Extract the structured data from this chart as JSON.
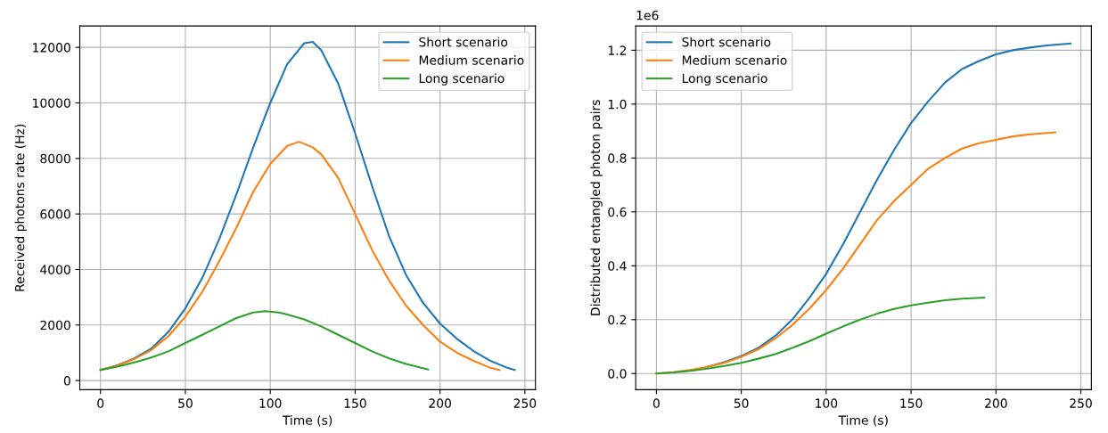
{
  "chart_data": [
    {
      "type": "line",
      "xlabel": "Time (s)",
      "ylabel": "Received photons rate (Hz)",
      "xlim": [
        -12.2,
        256.2
      ],
      "ylim": [
        -330,
        12770
      ],
      "xticks": [
        0,
        50,
        100,
        150,
        200,
        250
      ],
      "yticks": [
        0,
        2000,
        4000,
        6000,
        8000,
        10000,
        12000
      ],
      "grid": true,
      "legend": "upper right",
      "series": [
        {
          "name": "Short scenario",
          "color": "#1f77b4",
          "x": [
            0,
            10,
            20,
            30,
            40,
            50,
            60,
            70,
            80,
            90,
            100,
            110,
            120,
            125,
            130,
            140,
            150,
            160,
            170,
            180,
            190,
            200,
            210,
            220,
            230,
            240,
            244
          ],
          "values": [
            380,
            550,
            800,
            1150,
            1750,
            2600,
            3700,
            5100,
            6700,
            8400,
            10000,
            11400,
            12150,
            12200,
            11900,
            10700,
            8900,
            7000,
            5200,
            3800,
            2800,
            2050,
            1500,
            1050,
            700,
            450,
            380
          ]
        },
        {
          "name": "Medium scenario",
          "color": "#ff7f0e",
          "x": [
            0,
            10,
            20,
            30,
            40,
            50,
            60,
            70,
            80,
            90,
            100,
            110,
            117,
            125,
            130,
            140,
            150,
            160,
            170,
            180,
            190,
            200,
            210,
            220,
            230,
            235
          ],
          "values": [
            380,
            540,
            780,
            1100,
            1600,
            2300,
            3200,
            4300,
            5500,
            6800,
            7800,
            8450,
            8600,
            8400,
            8150,
            7300,
            6000,
            4700,
            3600,
            2700,
            2000,
            1400,
            1000,
            700,
            450,
            380
          ]
        },
        {
          "name": "Long scenario",
          "color": "#2ca02c",
          "x": [
            0,
            10,
            20,
            30,
            40,
            50,
            60,
            70,
            80,
            90,
            97,
            105,
            110,
            120,
            130,
            140,
            150,
            160,
            170,
            180,
            193
          ],
          "values": [
            380,
            500,
            650,
            830,
            1050,
            1350,
            1650,
            1950,
            2250,
            2450,
            2500,
            2450,
            2380,
            2200,
            1950,
            1650,
            1350,
            1050,
            800,
            600,
            400
          ]
        }
      ]
    },
    {
      "type": "line",
      "xlabel": "Time (s)",
      "ylabel": "Distributed entangled photon pairs",
      "annotations": [
        "1e6"
      ],
      "xlim": [
        -12.2,
        256.2
      ],
      "ylim": [
        -0.06,
        1.29
      ],
      "xticks": [
        0,
        50,
        100,
        150,
        200,
        250
      ],
      "yticks": [
        {
          "value": 0,
          "label": "0.0"
        },
        0.2,
        0.4,
        0.6,
        0.8,
        {
          "value": 1,
          "label": "1.0"
        },
        1.2
      ],
      "grid": true,
      "legend": "upper left",
      "series": [
        {
          "name": "Short scenario",
          "color": "#1f77b4",
          "x": [
            30,
            40,
            50,
            60,
            70,
            80,
            90,
            100,
            110,
            120,
            130,
            140,
            150,
            160,
            170,
            180,
            190,
            200,
            210,
            220,
            230,
            244
          ],
          "values": [
            0.025,
            0.042,
            0.065,
            0.095,
            0.14,
            0.2,
            0.28,
            0.37,
            0.48,
            0.6,
            0.72,
            0.83,
            0.93,
            1.01,
            1.08,
            1.13,
            1.16,
            1.185,
            1.2,
            1.21,
            1.218,
            1.225
          ]
        },
        {
          "name": "Medium scenario",
          "color": "#ff7f0e",
          "x": [
            0,
            10,
            20,
            30,
            40,
            50,
            60,
            70,
            80,
            90,
            100,
            110,
            120,
            130,
            140,
            150,
            160,
            170,
            180,
            190,
            200,
            210,
            220,
            235
          ],
          "values": [
            0,
            0.005,
            0.013,
            0.025,
            0.04,
            0.062,
            0.09,
            0.13,
            0.18,
            0.24,
            0.31,
            0.39,
            0.48,
            0.57,
            0.64,
            0.7,
            0.76,
            0.8,
            0.835,
            0.855,
            0.867,
            0.88,
            0.888,
            0.895
          ]
        },
        {
          "name": "Long scenario",
          "color": "#2ca02c",
          "x": [
            0,
            10,
            20,
            30,
            40,
            50,
            60,
            70,
            80,
            90,
            100,
            110,
            120,
            130,
            140,
            150,
            160,
            170,
            180,
            193
          ],
          "values": [
            0,
            0.004,
            0.01,
            0.018,
            0.028,
            0.04,
            0.055,
            0.072,
            0.095,
            0.12,
            0.148,
            0.175,
            0.2,
            0.222,
            0.24,
            0.253,
            0.263,
            0.272,
            0.278,
            0.282
          ]
        }
      ]
    }
  ]
}
